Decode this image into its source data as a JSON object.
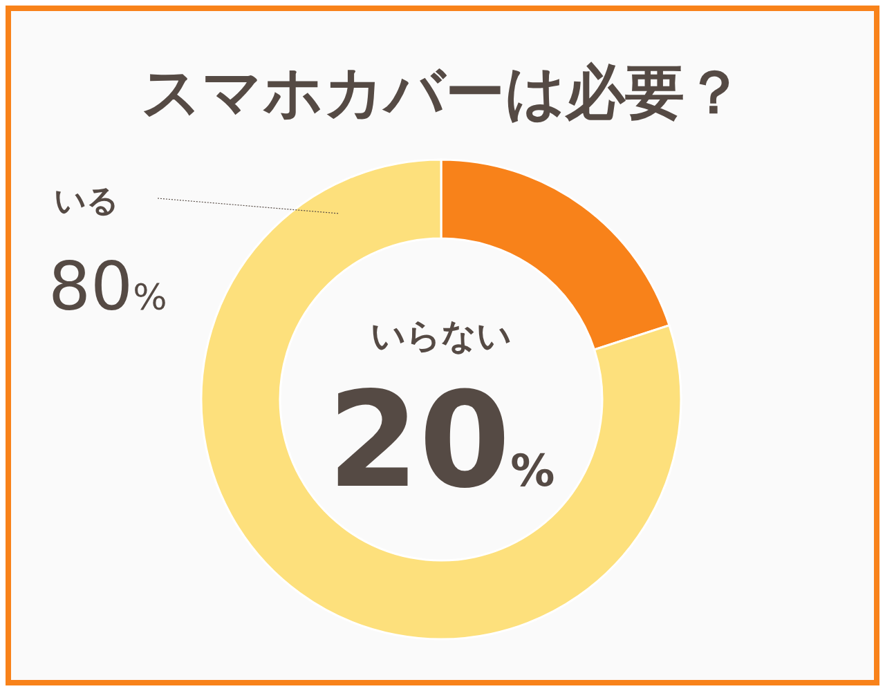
{
  "chart_data": {
    "type": "donut",
    "title": "スマホカバーは必要？",
    "categories": [
      "いらない",
      "いる"
    ],
    "values": [
      20,
      80
    ],
    "colors": [
      "#f8821a",
      "#fde07c"
    ],
    "value_labels": [
      "20%",
      "80%"
    ]
  }
}
